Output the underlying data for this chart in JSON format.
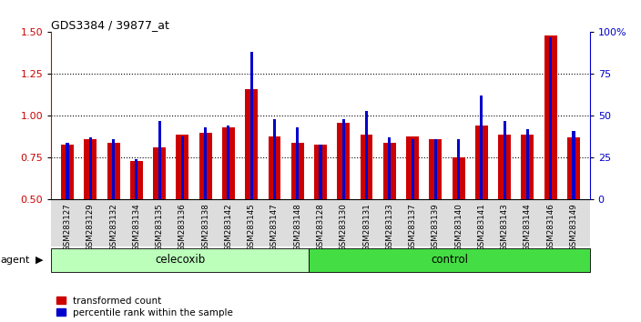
{
  "title": "GDS3384 / 39877_at",
  "samples": [
    "GSM283127",
    "GSM283129",
    "GSM283132",
    "GSM283134",
    "GSM283135",
    "GSM283136",
    "GSM283138",
    "GSM283142",
    "GSM283145",
    "GSM283147",
    "GSM283148",
    "GSM283128",
    "GSM283130",
    "GSM283131",
    "GSM283133",
    "GSM283137",
    "GSM283139",
    "GSM283140",
    "GSM283141",
    "GSM283143",
    "GSM283144",
    "GSM283146",
    "GSM283149"
  ],
  "red_values": [
    0.83,
    0.86,
    0.84,
    0.73,
    0.81,
    0.89,
    0.9,
    0.93,
    1.16,
    0.88,
    0.84,
    0.83,
    0.96,
    0.89,
    0.84,
    0.88,
    0.86,
    0.75,
    0.94,
    0.89,
    0.89,
    1.48,
    0.87
  ],
  "blue_values": [
    0.84,
    0.87,
    0.86,
    0.74,
    0.97,
    0.88,
    0.93,
    0.94,
    1.38,
    0.98,
    0.93,
    0.83,
    0.98,
    1.03,
    0.87,
    0.86,
    0.86,
    0.86,
    1.12,
    0.97,
    0.92,
    1.47,
    0.91
  ],
  "celecoxib_count": 11,
  "control_count": 12,
  "ylim_left": [
    0.5,
    1.5
  ],
  "ylim_right": [
    0,
    100
  ],
  "yticks_left": [
    0.5,
    0.75,
    1.0,
    1.25,
    1.5
  ],
  "yticks_right": [
    0,
    25,
    50,
    75,
    100
  ],
  "ytick_labels_right": [
    "0",
    "25",
    "50",
    "75",
    "100%"
  ],
  "red_color": "#CC0000",
  "blue_color": "#0000CC",
  "celecoxib_bg": "#BBFFBB",
  "control_bg": "#44DD44",
  "bar_width": 0.55,
  "blue_bar_width": 0.12,
  "grid_dotted_values": [
    0.75,
    1.0,
    1.25
  ],
  "legend_red": "transformed count",
  "legend_blue": "percentile rank within the sample",
  "agent_label": "agent",
  "celecoxib_label": "celecoxib",
  "control_label": "control",
  "xtick_bg": "#DDDDDD"
}
